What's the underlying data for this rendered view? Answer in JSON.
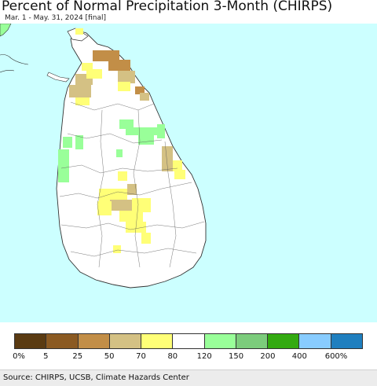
{
  "header": {
    "title": "Percent of Normal Precipitation 3-Month (CHIRPS)",
    "subtitle": "Mar. 1 - May. 31, 2024 [final]"
  },
  "legend": {
    "labels": [
      "0%",
      "5",
      "25",
      "50",
      "70",
      "80",
      "120",
      "150",
      "200",
      "400",
      "600%"
    ],
    "colors": [
      "#5a3b12",
      "#8b5a22",
      "#c28e47",
      "#d4c184",
      "#ffff77",
      "#ffffff",
      "#99ff99",
      "#7ccc7c",
      "#33aa11",
      "#88ccff",
      "#1f7fbf"
    ]
  },
  "footer": {
    "source": "Source: CHIRPS, UCSB, Climate Hazards Center"
  },
  "map": {
    "ocean_color": "#ccffff",
    "land_color": "#ffffff",
    "region": "Sri Lanka"
  }
}
